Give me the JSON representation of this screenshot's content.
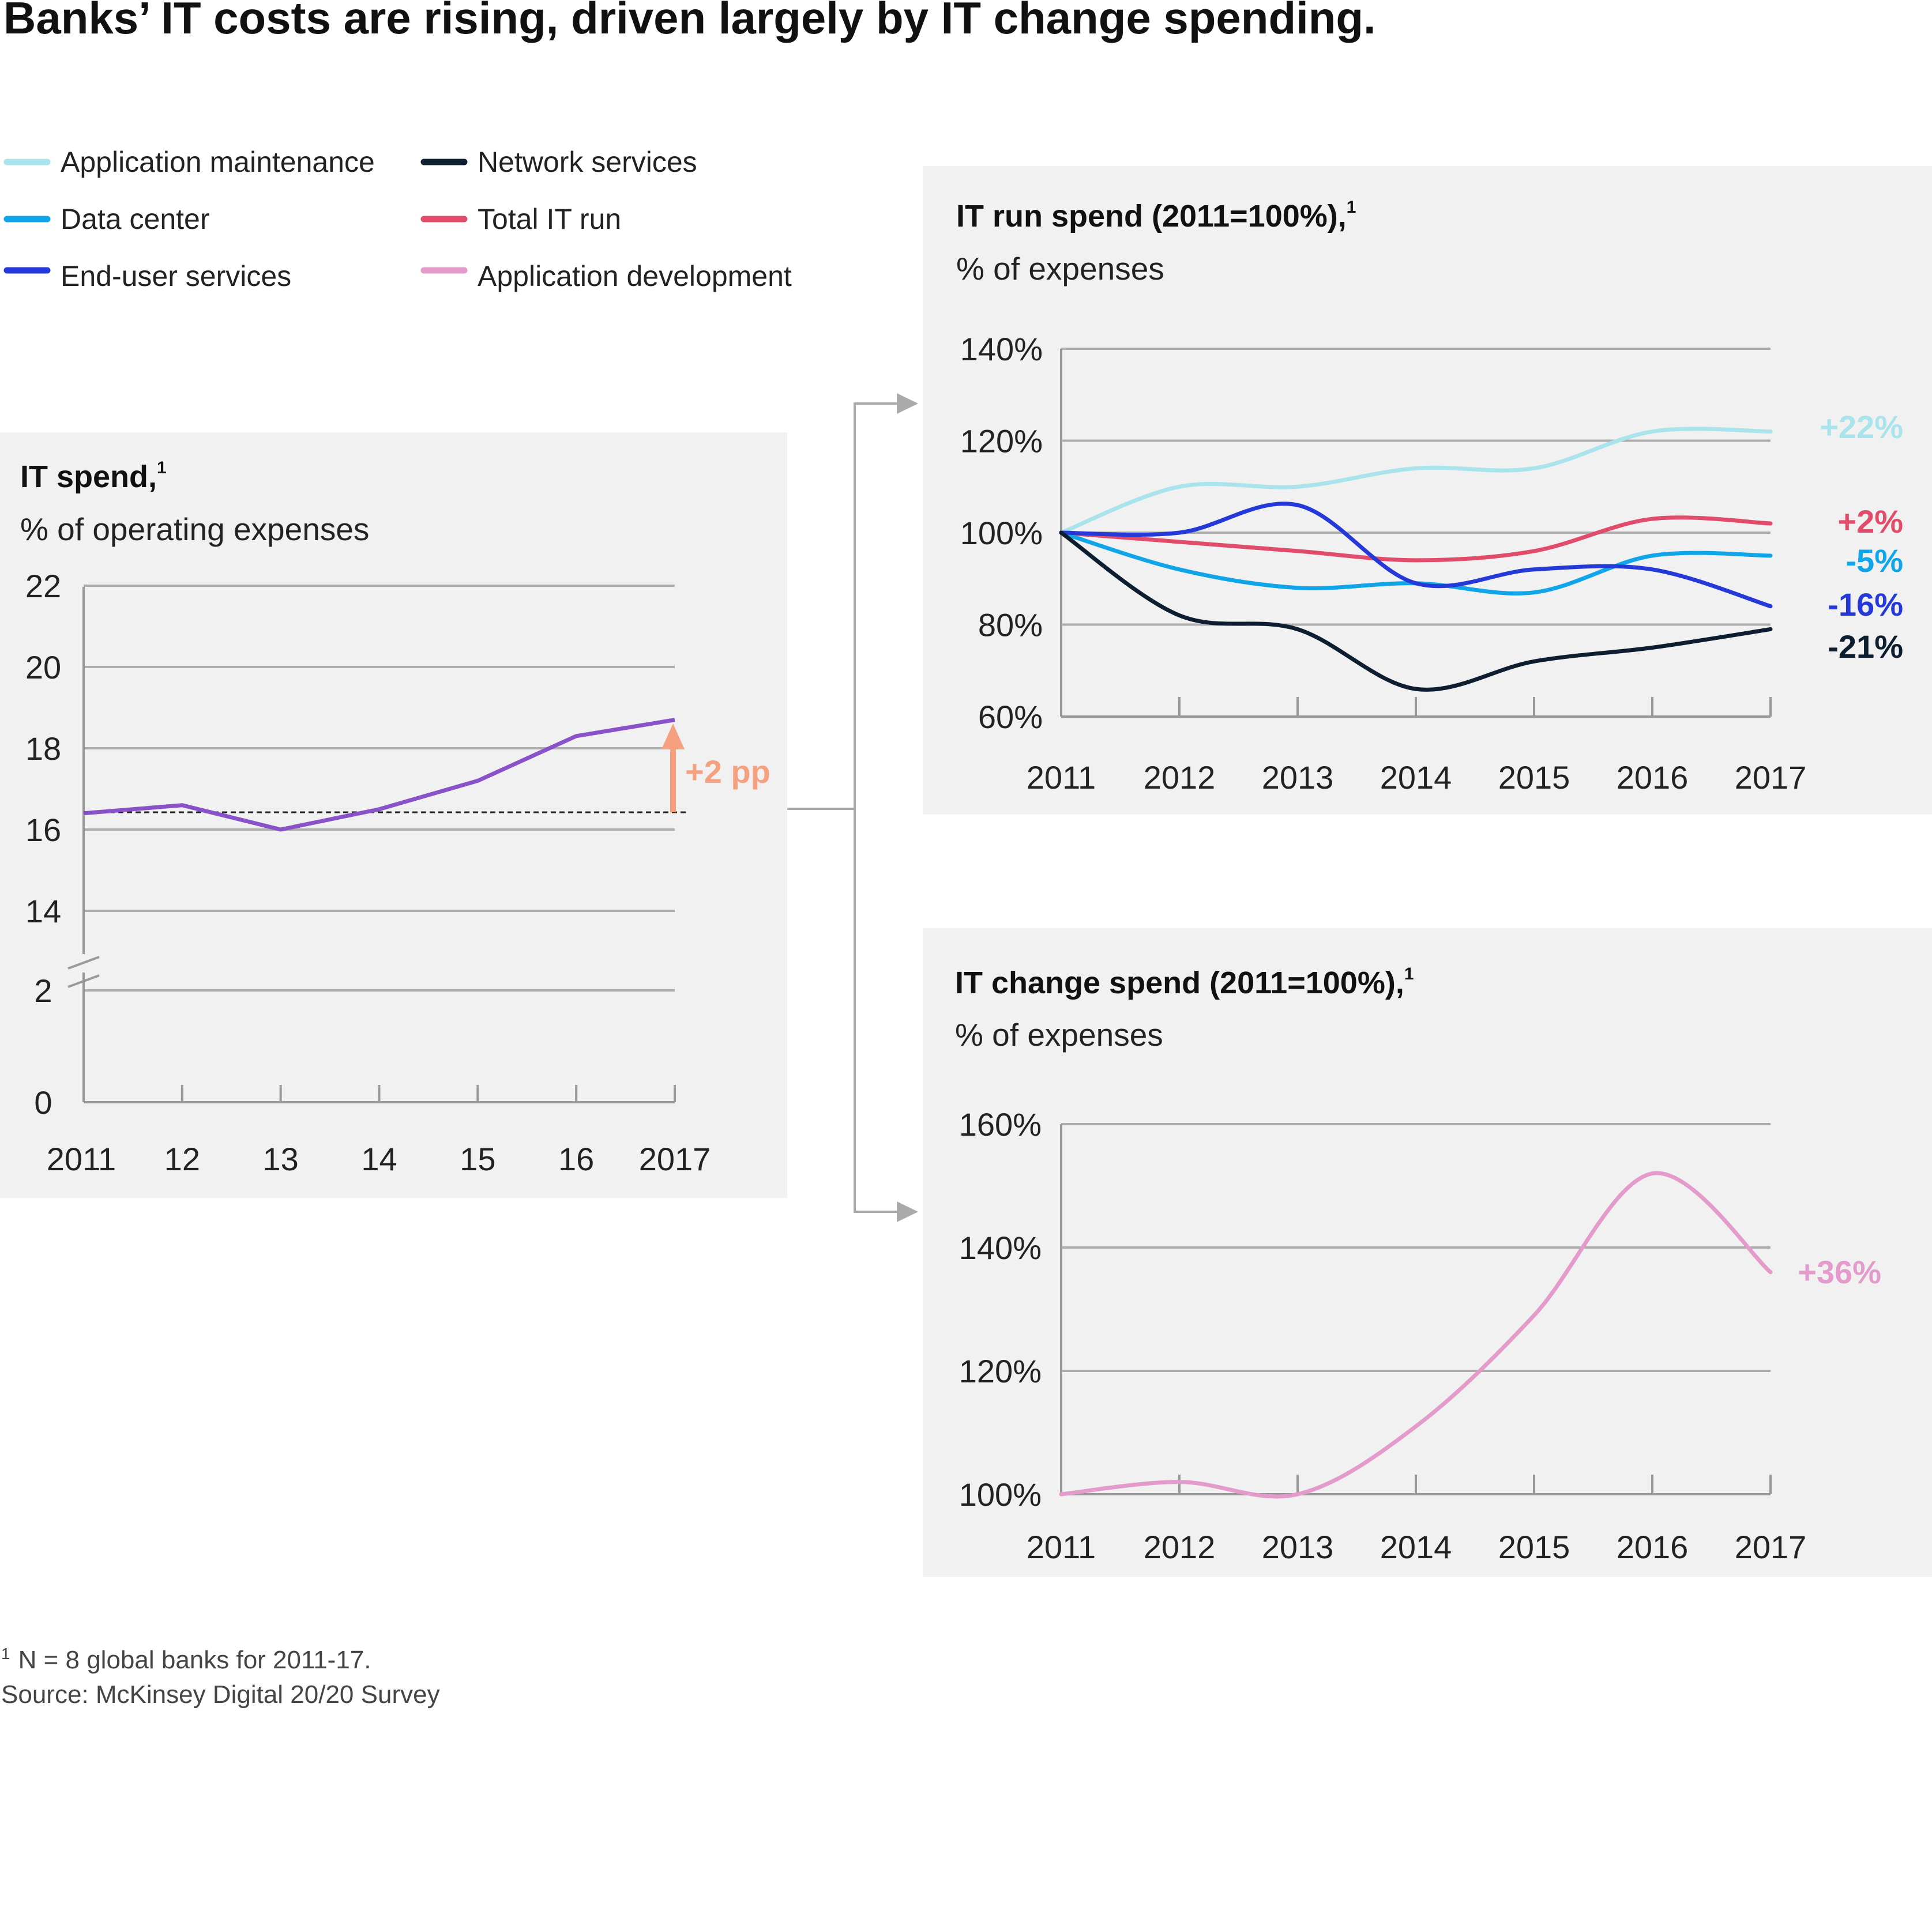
{
  "title": "Banks’ IT costs are rising, driven largely by IT change spending.",
  "legend": [
    {
      "label": "Application maintenance",
      "color": "#a9e4ec",
      "icon": "legend-swatch"
    },
    {
      "label": "Data center",
      "color": "#10a5e8",
      "icon": "legend-swatch"
    },
    {
      "label": "End-user services",
      "color": "#2539d8",
      "icon": "legend-swatch"
    },
    {
      "label": "Network services",
      "color": "#0c1e30",
      "icon": "legend-swatch"
    },
    {
      "label": "Total IT run",
      "color": "#e04c6a",
      "icon": "legend-swatch"
    },
    {
      "label": "Application development",
      "color": "#e39bcb",
      "icon": "legend-swatch"
    }
  ],
  "colors": {
    "panel_bg": "#f0f1f0",
    "it_spend_line": "#8a52c8",
    "annotation": "#f5a07f",
    "connector": "#aaaaaa"
  },
  "icons": {
    "connector": "arrow-right-icon",
    "annotation": "arrow-up-icon",
    "break": "axis-break-icon"
  },
  "chart_data": [
    {
      "type": "line",
      "title": "IT spend,",
      "title_footnote": "1",
      "subtitle": "% of operating expenses",
      "categories": [
        "2011",
        "12",
        "13",
        "14",
        "15",
        "16",
        "2017"
      ],
      "series": [
        {
          "values": [
            16.4,
            16.6,
            16.0,
            16.5,
            17.2,
            18.3,
            18.7
          ]
        }
      ],
      "yticks": [
        "22",
        "20",
        "18",
        "16",
        "14",
        "2",
        "0"
      ],
      "ylim": [
        0,
        22
      ],
      "axis_break": true,
      "reference_line": 16.4,
      "annotation": "+2 pp",
      "grid": true
    },
    {
      "type": "line",
      "title": "IT run spend (2011=100%),",
      "title_footnote": "1",
      "subtitle": "% of expenses",
      "categories": [
        "2011",
        "2012",
        "2013",
        "2014",
        "2015",
        "2016",
        "2017"
      ],
      "yticks": [
        "140%",
        "120%",
        "100%",
        "80%",
        "60%"
      ],
      "ylim": [
        60,
        140
      ],
      "grid": true,
      "series": [
        {
          "legend_ref": 0,
          "values": [
            100,
            110,
            110,
            114,
            114,
            122,
            122
          ],
          "end_label": "+22%"
        },
        {
          "legend_ref": 4,
          "values": [
            100,
            98,
            96,
            94,
            96,
            103,
            102
          ],
          "end_label": "+2%"
        },
        {
          "legend_ref": 1,
          "values": [
            100,
            92,
            88,
            89,
            87,
            95,
            95
          ],
          "end_label": "-5%"
        },
        {
          "legend_ref": 2,
          "values": [
            100,
            100,
            106,
            89,
            92,
            92,
            84
          ],
          "end_label": "-16%"
        },
        {
          "legend_ref": 3,
          "values": [
            100,
            82,
            79,
            66,
            72,
            75,
            79
          ],
          "end_label": "-21%"
        }
      ]
    },
    {
      "type": "line",
      "title": "IT change spend (2011=100%),",
      "title_footnote": "1",
      "subtitle": "% of expenses",
      "categories": [
        "2011",
        "2012",
        "2013",
        "2014",
        "2015",
        "2016",
        "2017"
      ],
      "yticks": [
        "160%",
        "140%",
        "120%",
        "100%"
      ],
      "ylim": [
        100,
        160
      ],
      "grid": true,
      "series": [
        {
          "legend_ref": 5,
          "values": [
            100,
            102,
            100,
            111,
            129,
            152,
            136
          ],
          "end_label": "+36%"
        }
      ]
    }
  ],
  "footnote": {
    "marker": "1",
    "text": "N = 8 global banks for 2011-17.",
    "source": "Source: McKinsey Digital 20/20 Survey"
  }
}
